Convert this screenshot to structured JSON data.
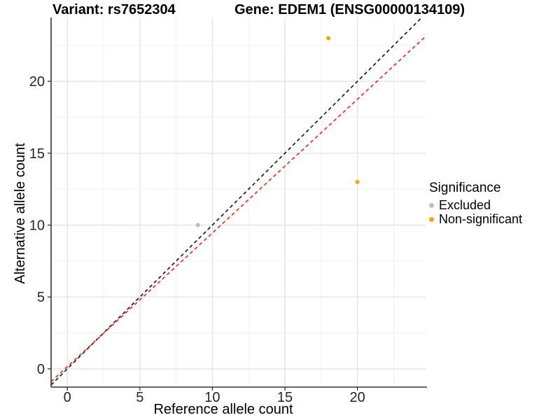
{
  "titles": {
    "variant": "Variant: rs7652304",
    "gene": "Gene: EDEM1 (ENSG00000134109)"
  },
  "chart_data": {
    "type": "scatter",
    "xlabel": "Reference allele count",
    "ylabel": "Alternative allele count",
    "xlim": [
      -1.12,
      24.7
    ],
    "ylim": [
      -1.27,
      24.44
    ],
    "x_ticks": [
      0,
      5,
      10,
      15,
      20
    ],
    "y_ticks": [
      0,
      5,
      10,
      15,
      20
    ],
    "minor_step": 2.5,
    "grid": "major+minor",
    "points": [
      {
        "x": 18,
        "y": 23,
        "significance": "Non-significant"
      },
      {
        "x": 20,
        "y": 13,
        "significance": "Non-significant"
      },
      {
        "x": 9,
        "y": 10,
        "significance": "Excluded"
      }
    ],
    "lines": [
      {
        "name": "identity",
        "slope": 1,
        "intercept": 0,
        "color": "#1c1c1c",
        "style": "dashed"
      },
      {
        "name": "fit",
        "slope": 0.93,
        "intercept": 0.15,
        "color": "#f8291d",
        "style": "dashed"
      }
    ],
    "colors": {
      "Excluded": "#bebebe",
      "Non-significant": "#ffa500"
    },
    "legend": {
      "title": "Significance",
      "entries": [
        "Excluded",
        "Non-significant"
      ],
      "position": "right"
    }
  }
}
